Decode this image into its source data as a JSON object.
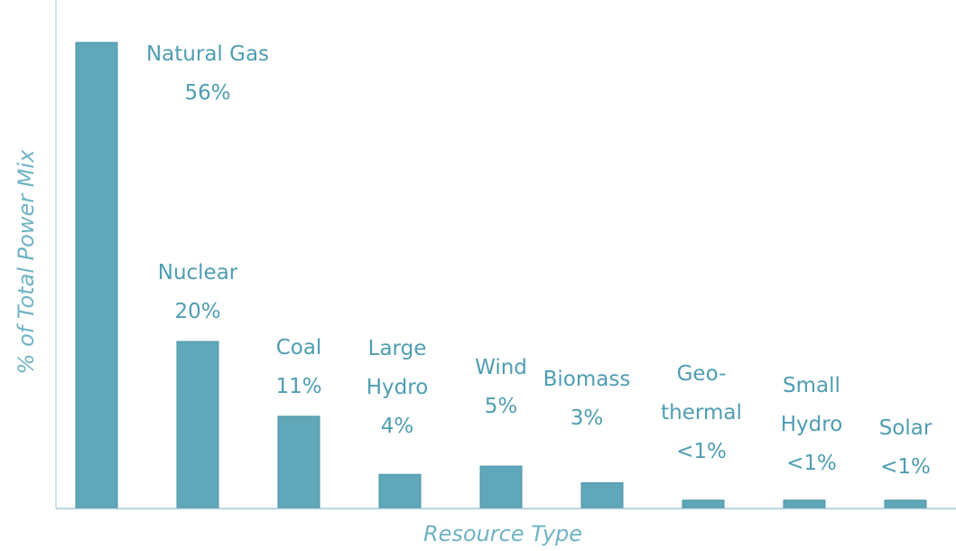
{
  "chart_data": {
    "type": "bar",
    "y_label": "% of Total Power Mix",
    "x_label": "Resource Type",
    "categories": [
      "Natural Gas",
      "Nuclear",
      "Coal",
      "Large\nHydro",
      "Wind",
      "Biomass",
      "Geo-\nthermal",
      "Small\nHydro",
      "Solar"
    ],
    "values": [
      56,
      20,
      11,
      4,
      5,
      3,
      0.9,
      0.9,
      0.9
    ],
    "value_labels": [
      "56%",
      "20%",
      "11%",
      "4%",
      "5%",
      "3%",
      "<1%",
      "<1%",
      "<1%"
    ],
    "color": "#5fa7b9",
    "ylim": [
      0,
      56
    ]
  }
}
